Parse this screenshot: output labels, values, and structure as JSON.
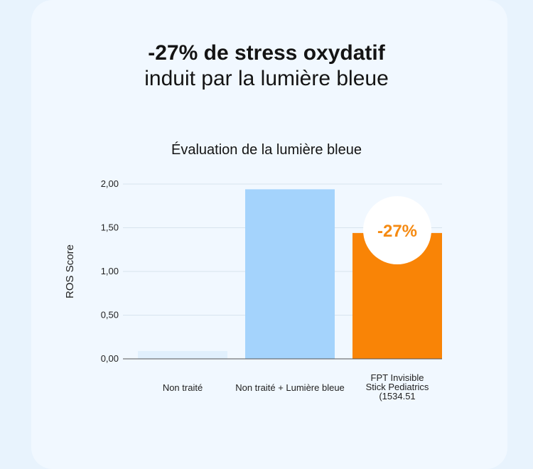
{
  "headline": {
    "bold": "-27% de stress oxydatif",
    "light": "induit par la lumière bleue"
  },
  "colors": {
    "background": "#e8f3fd",
    "card": "#f1f8ff",
    "series": [
      "#e1f0fd",
      "#a4d3fc",
      "#f98406"
    ],
    "badge_text": "#f58a12"
  },
  "chart_data": {
    "type": "bar",
    "title": "Évaluation de la lumière bleue",
    "xlabel": "",
    "ylabel": "ROS Score",
    "ylim": [
      0,
      2
    ],
    "yticks": [
      "0,00",
      "0,50",
      "1,00",
      "1,50",
      "2,00"
    ],
    "ytick_values": [
      0,
      0.5,
      1,
      1.5,
      2
    ],
    "grid": true,
    "categories": [
      [
        "Non traité"
      ],
      [
        "Non traité + Lumière bleue"
      ],
      [
        "FPT Invisible",
        "Stick Pediatrics",
        "(1534.51"
      ]
    ],
    "values": [
      0.09,
      1.94,
      1.44
    ],
    "annotation": {
      "text": "-27%",
      "bar_index": 2
    }
  }
}
